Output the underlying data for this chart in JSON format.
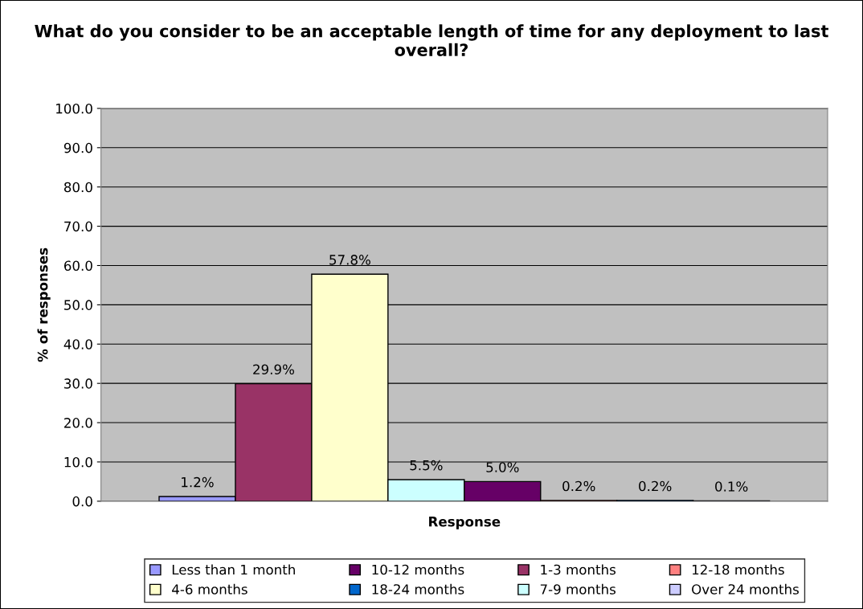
{
  "chart_data": {
    "type": "bar",
    "title": "What do you consider to be an acceptable length of time for any deployment to last overall?",
    "xlabel": "Response",
    "ylabel": "% of responses",
    "categories": [
      null
    ],
    "series": [
      {
        "name": "Less than 1 month",
        "color": "#9999ff",
        "values": [
          1.2
        ],
        "value_labels": [
          "1.2%"
        ]
      },
      {
        "name": "1-3 months",
        "color": "#993366",
        "values": [
          29.9
        ],
        "value_labels": [
          "29.9%"
        ]
      },
      {
        "name": "4-6 months",
        "color": "#ffffcc",
        "values": [
          57.8
        ],
        "value_labels": [
          "57.8%"
        ]
      },
      {
        "name": "7-9 months",
        "color": "#ccffff",
        "values": [
          5.5
        ],
        "value_labels": [
          "5.5%"
        ]
      },
      {
        "name": "10-12 months",
        "color": "#660066",
        "values": [
          5.0
        ],
        "value_labels": [
          "5.0%"
        ]
      },
      {
        "name": "12-18 months",
        "color": "#ff8080",
        "values": [
          0.2
        ],
        "value_labels": [
          "0.2%"
        ]
      },
      {
        "name": "18-24 months",
        "color": "#0066cc",
        "values": [
          0.2
        ],
        "value_labels": [
          "0.2%"
        ]
      },
      {
        "name": "Over 24 months",
        "color": "#ccccff",
        "values": [
          0.1
        ],
        "value_labels": [
          "0.1%"
        ]
      }
    ],
    "ylim": [
      0,
      100
    ],
    "yticks": [
      {
        "value": 0,
        "label": "0.0"
      },
      {
        "value": 10,
        "label": "10.0"
      },
      {
        "value": 20,
        "label": "20.0"
      },
      {
        "value": 30,
        "label": "30.0"
      },
      {
        "value": 40,
        "label": "40.0"
      },
      {
        "value": 50,
        "label": "50.0"
      },
      {
        "value": 60,
        "label": "60.0"
      },
      {
        "value": 70,
        "label": "70.0"
      },
      {
        "value": 80,
        "label": "80.0"
      },
      {
        "value": 90,
        "label": "90.0"
      },
      {
        "value": 100,
        "label": "100.0"
      }
    ],
    "grid": "y",
    "legend": "bottom"
  }
}
